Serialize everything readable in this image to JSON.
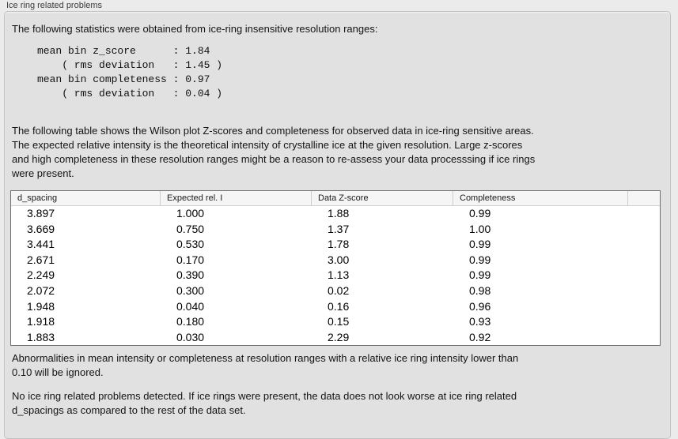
{
  "panel": {
    "title": "Ice ring related problems"
  },
  "content": {
    "intro": "The following statistics were obtained from ice-ring insensitive resolution ranges:",
    "stats_block": "mean bin z_score      : 1.84\n    ( rms deviation   : 1.45 )\nmean bin completeness : 0.97\n    ( rms deviation   : 0.04 )",
    "table_description": "The following table shows the Wilson plot Z-scores and completeness for observed data in ice-ring sensitive areas.\nThe expected relative intensity is the theoretical intensity of crystalline ice at the given resolution. Large z-scores\nand high completeness in these resolution ranges might be a reason to re-assess your data processsing if ice rings\nwere present.",
    "note_abnormalities": "Abnormalities in mean intensity or completeness at resolution ranges with a relative ice ring intensity lower than\n0.10 will be ignored.",
    "conclusion": "No ice ring related problems detected. If ice rings were present, the data does not look worse at ice ring related\nd_spacings as compared to the rest of the data set."
  },
  "table": {
    "columns": [
      "d_spacing",
      "Expected rel. I",
      "Data Z-score",
      "Completeness",
      ""
    ],
    "rows": [
      [
        "3.897",
        "1.000",
        "1.88",
        "0.99"
      ],
      [
        "3.669",
        "0.750",
        "1.37",
        "1.00"
      ],
      [
        "3.441",
        "0.530",
        "1.78",
        "0.99"
      ],
      [
        "2.671",
        "0.170",
        "3.00",
        "0.99"
      ],
      [
        "2.249",
        "0.390",
        "1.13",
        "0.99"
      ],
      [
        "2.072",
        "0.300",
        "0.02",
        "0.98"
      ],
      [
        "1.948",
        "0.040",
        "0.16",
        "0.96"
      ],
      [
        "1.918",
        "0.180",
        "0.15",
        "0.93"
      ],
      [
        "1.883",
        "0.030",
        "2.29",
        "0.92"
      ]
    ]
  },
  "colors": {
    "page_background": "#ebebeb",
    "groupbox_background": "#e1e1e1",
    "groupbox_border": "#c2c2c2",
    "table_border": "#6e6e6e",
    "table_header_background": "#f5f5f5",
    "text": "#141414"
  }
}
